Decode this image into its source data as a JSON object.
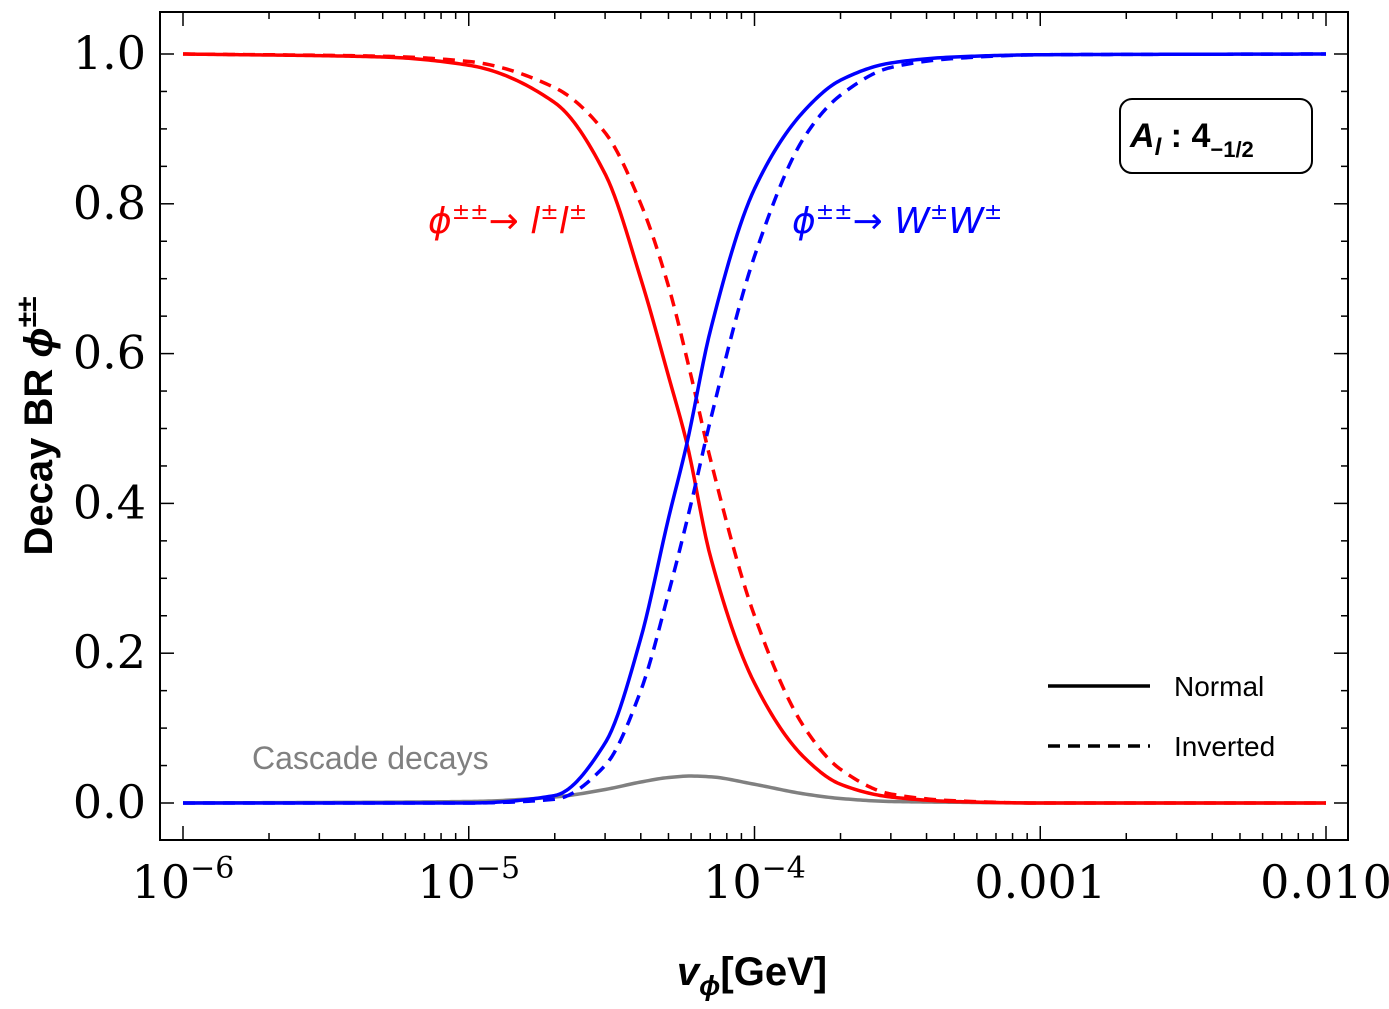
{
  "chart_data": {
    "type": "line",
    "xscale": "log",
    "xlim": [
      1e-06,
      0.01
    ],
    "ylim": [
      0.0,
      1.0
    ],
    "xlabel": {
      "main": "v",
      "sub": "ϕ",
      "unit": "[GeV]"
    },
    "ylabel": {
      "main": "Decay BR ",
      "sym": "ϕ",
      "sup": "±±"
    },
    "xticks": [
      {
        "value": 1e-06,
        "base": "10",
        "exp": "−6"
      },
      {
        "value": 1e-05,
        "base": "10",
        "exp": "−5"
      },
      {
        "value": 0.0001,
        "base": "10",
        "exp": "−4"
      },
      {
        "value": 0.001,
        "label": "0.001"
      },
      {
        "value": 0.01,
        "label": "0.010"
      }
    ],
    "yticks": [
      {
        "value": 0.0,
        "label": "0.0"
      },
      {
        "value": 0.2,
        "label": "0.2"
      },
      {
        "value": 0.4,
        "label": "0.4"
      },
      {
        "value": 0.6,
        "label": "0.6"
      },
      {
        "value": 0.8,
        "label": "0.8"
      },
      {
        "value": 1.0,
        "label": "1.0"
      }
    ],
    "series": [
      {
        "name": "ϕ±± → l±l± (Normal)",
        "color": "#ff0000",
        "style": "solid",
        "x": [
          1e-06,
          5e-06,
          1e-05,
          2e-05,
          3e-05,
          4e-05,
          5e-05,
          5.8e-05,
          7e-05,
          0.0001,
          0.00015,
          0.0002,
          0.0003,
          0.0005,
          0.001,
          0.01
        ],
        "y": [
          1.0,
          0.996,
          0.985,
          0.935,
          0.84,
          0.7,
          0.57,
          0.48,
          0.33,
          0.16,
          0.06,
          0.025,
          0.008,
          0.002,
          0.0,
          0.0
        ]
      },
      {
        "name": "ϕ±± → l±l± (Inverted)",
        "color": "#ff0000",
        "style": "dashed",
        "x": [
          1e-06,
          5e-06,
          1e-05,
          2e-05,
          3e-05,
          4e-05,
          5e-05,
          6e-05,
          7e-05,
          0.0001,
          0.00015,
          0.0002,
          0.0003,
          0.0005,
          0.001,
          0.01
        ],
        "y": [
          1.0,
          0.997,
          0.99,
          0.955,
          0.895,
          0.8,
          0.69,
          0.57,
          0.46,
          0.25,
          0.1,
          0.045,
          0.012,
          0.003,
          0.0,
          0.0
        ]
      },
      {
        "name": "ϕ±± → W±W± (Normal)",
        "color": "#0000ff",
        "style": "solid",
        "x": [
          1e-06,
          1e-05,
          2e-05,
          3e-05,
          4e-05,
          5e-05,
          5.8e-05,
          7e-05,
          0.0001,
          0.00015,
          0.0002,
          0.0003,
          0.0005,
          0.001,
          0.01
        ],
        "y": [
          0.0,
          0.0,
          0.01,
          0.08,
          0.22,
          0.38,
          0.48,
          0.63,
          0.82,
          0.925,
          0.965,
          0.988,
          0.996,
          0.999,
          1.0
        ]
      },
      {
        "name": "ϕ±± → W±W± (Inverted)",
        "color": "#0000ff",
        "style": "dashed",
        "x": [
          1e-06,
          1e-05,
          2e-05,
          3e-05,
          4e-05,
          5e-05,
          6e-05,
          7e-05,
          0.0001,
          0.00015,
          0.0002,
          0.0003,
          0.0005,
          0.001,
          0.01
        ],
        "y": [
          0.0,
          0.0,
          0.005,
          0.05,
          0.15,
          0.28,
          0.4,
          0.51,
          0.73,
          0.89,
          0.945,
          0.982,
          0.994,
          0.999,
          1.0
        ]
      },
      {
        "name": "Cascade decays",
        "color": "#808080",
        "style": "solid",
        "x": [
          1e-06,
          1e-05,
          2e-05,
          3e-05,
          4e-05,
          5e-05,
          6e-05,
          7e-05,
          0.0001,
          0.00015,
          0.0002,
          0.0003,
          0.0005,
          0.001,
          0.01
        ],
        "y": [
          0.0,
          0.002,
          0.008,
          0.018,
          0.028,
          0.034,
          0.036,
          0.035,
          0.025,
          0.012,
          0.006,
          0.002,
          0.001,
          0.0,
          0.0
        ]
      }
    ],
    "legend": {
      "placement": "bottom-right",
      "entries": [
        {
          "label": "Normal",
          "style": "solid"
        },
        {
          "label": "Inverted",
          "style": "dashed"
        }
      ]
    },
    "annotations": {
      "ll": {
        "text": "ϕ",
        "sup1": "±±",
        "arrow": "→ ",
        "l1": "l",
        "sup2": "±",
        "l2": "l",
        "sup3": "±",
        "color": "#ff0000"
      },
      "ww": {
        "text": "ϕ",
        "sup1": "±±",
        "arrow": "→ ",
        "l1": "W",
        "sup2": "±",
        "l2": "W",
        "sup3": "±",
        "color": "#0000ff"
      },
      "cascade": {
        "text": "Cascade decays",
        "color": "#808080"
      },
      "badge": {
        "main": "A",
        "sub1": "l",
        "colon": " : 4",
        "sub2": "−1/2"
      }
    }
  }
}
